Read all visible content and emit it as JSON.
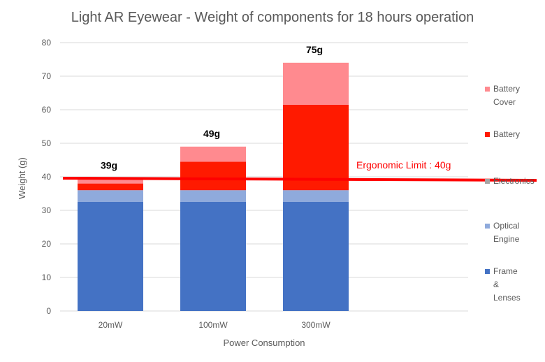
{
  "chart_data": {
    "type": "bar",
    "stacked": true,
    "title": "Light AR Eyewear - Weight of components for 18 hours operation",
    "xlabel": "Power Consumption",
    "ylabel": "Weight (g)",
    "ylim": [
      0,
      80
    ],
    "yticks": [
      0,
      10,
      20,
      30,
      40,
      50,
      60,
      70,
      80
    ],
    "grid": true,
    "legend_position": "right",
    "categories": [
      "20mW",
      "100mW",
      "300mW"
    ],
    "series": [
      {
        "name": "Frame & Lenses",
        "label_lines": [
          "Frame",
          "&",
          "Lenses"
        ],
        "color": "#4472c4",
        "values": [
          32.5,
          32.5,
          32.5
        ]
      },
      {
        "name": "Optical Engine",
        "label_lines": [
          "Optical",
          "Engine"
        ],
        "color": "#8faadc",
        "values": [
          3.5,
          3.5,
          3.5
        ]
      },
      {
        "name": "Electronics",
        "label_lines": [
          "Electronics"
        ],
        "color": "#a5a5a5",
        "values": [
          0,
          0,
          0
        ]
      },
      {
        "name": "Battery",
        "label_lines": [
          "Battery"
        ],
        "color": "#ff1a00",
        "values": [
          2,
          8.5,
          25.5
        ]
      },
      {
        "name": "Battery Cover",
        "label_lines": [
          "Battery",
          "Cover"
        ],
        "color": "#ff8a8f",
        "values": [
          1.5,
          4.5,
          12.5
        ]
      }
    ],
    "totals": [
      "39g",
      "49g",
      "75g"
    ],
    "reference_line": {
      "value": 40,
      "label": "Ergonomic Limit : 40g",
      "color": "#ff0000"
    }
  }
}
